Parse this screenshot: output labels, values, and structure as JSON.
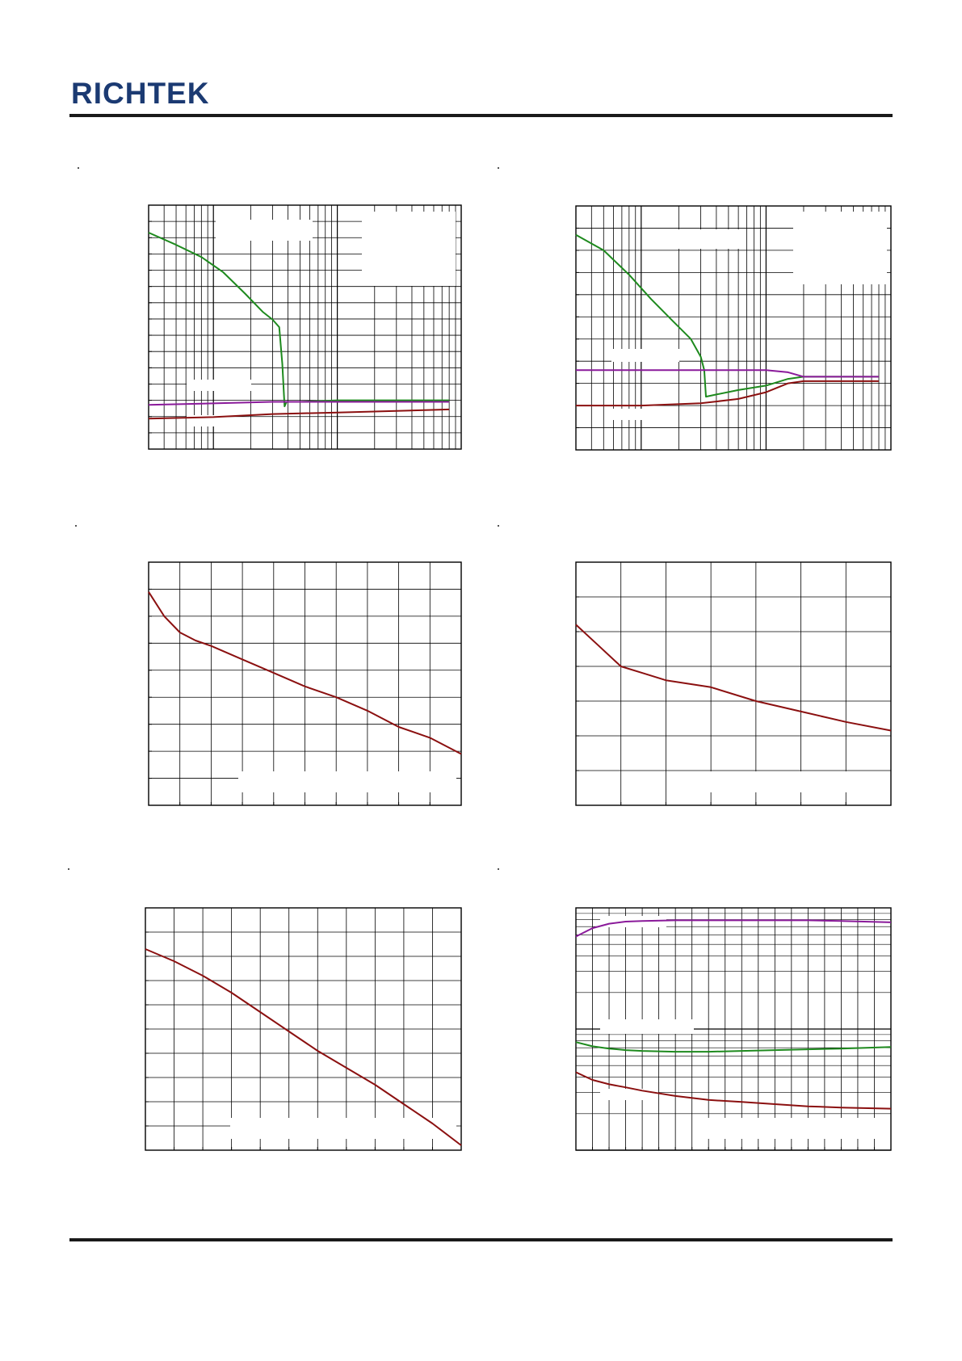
{
  "header": {
    "logo_text": "RICHTEK"
  },
  "colors": {
    "brand": "#1b3a72",
    "rule": "#1a1a1a",
    "grid": "#000000",
    "red": "#8b1010",
    "green": "#1e8a1e",
    "purple": "#8a1a9a"
  },
  "chart_data": [
    {
      "type": "line",
      "x_scale": "log",
      "grid": true,
      "series": [
        {
          "color": "green",
          "x": [
            3,
            5,
            8,
            12,
            18,
            25,
            30,
            34,
            36,
            37.5,
            39,
            50,
            100,
            200,
            400,
            800
          ],
          "y": [
            7.1,
            6.7,
            6.3,
            5.8,
            5.1,
            4.5,
            4.25,
            4.0,
            2.8,
            1.4,
            1.55,
            1.55,
            1.6,
            1.6,
            1.6,
            1.6
          ]
        },
        {
          "color": "purple",
          "x": [
            3,
            10,
            30,
            100,
            300,
            800
          ],
          "y": [
            1.45,
            1.5,
            1.55,
            1.55,
            1.55,
            1.55
          ]
        },
        {
          "color": "red",
          "x": [
            3,
            10,
            30,
            100,
            300,
            800
          ],
          "y": [
            1.0,
            1.05,
            1.15,
            1.2,
            1.25,
            1.3
          ]
        }
      ]
    },
    {
      "type": "line",
      "x_scale": "log",
      "grid": true,
      "series": [
        {
          "color": "green",
          "x": [
            3,
            5,
            8,
            12,
            18,
            25,
            30,
            32,
            33,
            40,
            60,
            100,
            150,
            200,
            400,
            800
          ],
          "y": [
            9.7,
            9.0,
            7.9,
            6.8,
            5.8,
            5.0,
            4.2,
            3.6,
            2.4,
            2.5,
            2.7,
            2.9,
            3.2,
            3.3,
            3.3,
            3.3
          ]
        },
        {
          "color": "purple",
          "x": [
            3,
            10,
            30,
            100,
            150,
            200,
            400,
            800
          ],
          "y": [
            3.6,
            3.6,
            3.6,
            3.6,
            3.5,
            3.3,
            3.3,
            3.3
          ]
        },
        {
          "color": "red",
          "x": [
            3,
            10,
            30,
            60,
            100,
            150,
            200,
            400,
            800
          ],
          "y": [
            2.0,
            2.0,
            2.1,
            2.3,
            2.6,
            3.0,
            3.1,
            3.1,
            3.1
          ]
        }
      ]
    },
    {
      "type": "line",
      "x_scale": "linear",
      "grid": true,
      "xlim": [
        0,
        10
      ],
      "ylim": [
        0,
        9
      ],
      "series": [
        {
          "color": "red",
          "x": [
            0,
            0.5,
            1,
            1.5,
            2,
            3,
            4,
            5,
            6,
            7,
            8,
            9,
            10
          ],
          "y": [
            7.9,
            7.0,
            6.4,
            6.1,
            5.9,
            5.4,
            4.9,
            4.4,
            4.0,
            3.5,
            2.9,
            2.5,
            1.9
          ]
        }
      ]
    },
    {
      "type": "line",
      "x_scale": "linear",
      "grid": true,
      "xlim": [
        0,
        7
      ],
      "ylim": [
        0,
        7
      ],
      "series": [
        {
          "color": "red",
          "x": [
            0,
            0.5,
            1,
            1.5,
            2,
            3,
            4,
            5,
            6,
            7
          ],
          "y": [
            5.2,
            4.6,
            4.0,
            3.8,
            3.6,
            3.4,
            3.0,
            2.7,
            2.4,
            2.15
          ]
        }
      ]
    },
    {
      "type": "line",
      "x_scale": "linear",
      "grid": true,
      "xlim": [
        0,
        11
      ],
      "ylim": [
        0,
        10
      ],
      "series": [
        {
          "color": "red",
          "x": [
            0,
            1,
            2,
            3,
            4,
            5,
            6,
            7,
            8,
            9,
            10,
            11
          ],
          "y": [
            8.3,
            7.8,
            7.2,
            6.5,
            5.7,
            4.9,
            4.1,
            3.4,
            2.7,
            1.9,
            1.1,
            0.2
          ]
        }
      ]
    },
    {
      "type": "line",
      "x_scale": "linear",
      "y_scale": "log",
      "grid": true,
      "xlim": [
        0,
        19
      ],
      "ylim": [
        0.1,
        10
      ],
      "series": [
        {
          "color": "purple",
          "x": [
            0,
            1,
            2,
            3,
            4,
            6,
            8,
            10,
            12,
            14,
            16,
            19
          ],
          "y": [
            5.8,
            6.8,
            7.4,
            7.7,
            7.8,
            7.9,
            7.9,
            7.9,
            7.9,
            7.9,
            7.8,
            7.6
          ]
        },
        {
          "color": "green",
          "x": [
            0,
            1,
            2,
            3,
            4,
            6,
            8,
            10,
            12,
            14,
            16,
            19
          ],
          "y": [
            0.78,
            0.72,
            0.69,
            0.67,
            0.66,
            0.65,
            0.65,
            0.66,
            0.67,
            0.68,
            0.69,
            0.71
          ]
        },
        {
          "color": "red",
          "x": [
            0,
            1,
            2,
            3,
            4,
            6,
            8,
            10,
            12,
            14,
            16,
            19
          ],
          "y": [
            0.44,
            0.38,
            0.35,
            0.33,
            0.31,
            0.28,
            0.26,
            0.25,
            0.24,
            0.23,
            0.225,
            0.22
          ]
        }
      ]
    }
  ]
}
